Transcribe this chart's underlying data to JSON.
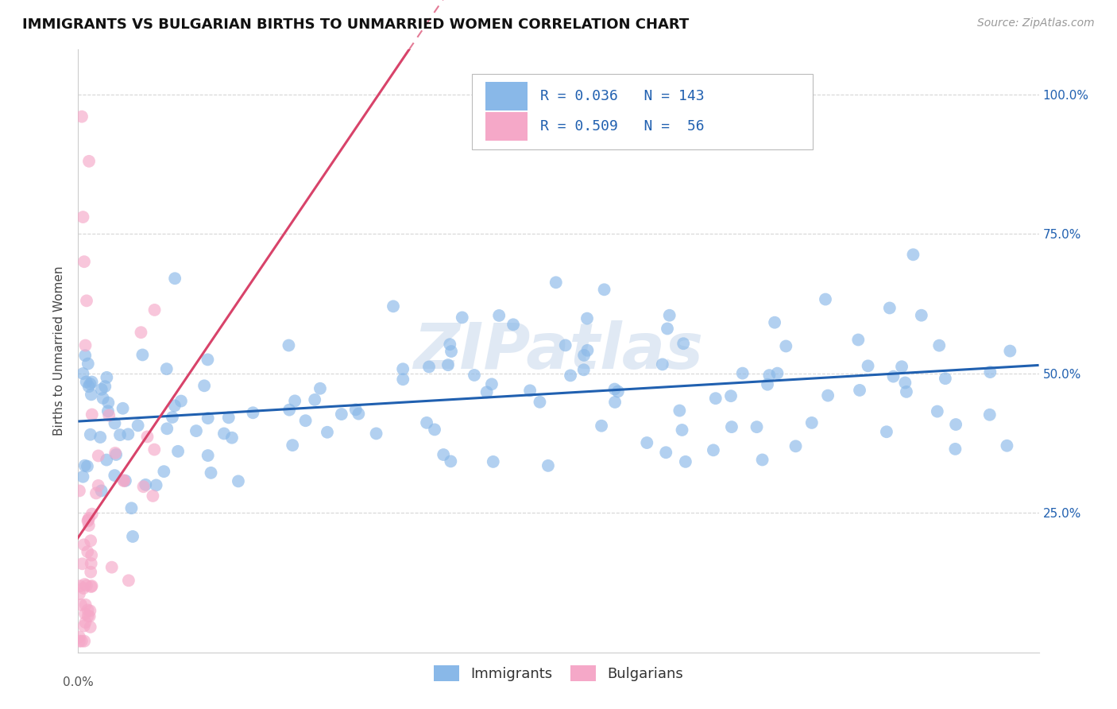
{
  "title": "IMMIGRANTS VS BULGARIAN BIRTHS TO UNMARRIED WOMEN CORRELATION CHART",
  "source": "Source: ZipAtlas.com",
  "ylabel": "Births to Unmarried Women",
  "ytick_labels_right": [
    "25.0%",
    "50.0%",
    "75.0%",
    "100.0%"
  ],
  "ytick_values": [
    0.25,
    0.5,
    0.75,
    1.0
  ],
  "xmin": 0.0,
  "xmax": 0.8,
  "ymin": 0.0,
  "ymax": 1.08,
  "legend_label1": "Immigrants",
  "legend_label2": "Bulgarians",
  "r1": "0.036",
  "n1": "143",
  "r2": "0.509",
  "n2": " 56",
  "color_immigrants": "#89b8e8",
  "color_bulgarians": "#f5a8c8",
  "color_line_immigrants": "#2060b0",
  "color_line_bulgarians": "#d8436a",
  "watermark_text": "ZIPatlas",
  "background_color": "#ffffff",
  "grid_color": "#cccccc",
  "title_fontsize": 13,
  "source_fontsize": 10,
  "ylabel_fontsize": 11,
  "tick_fontsize": 11,
  "legend_fontsize": 13
}
